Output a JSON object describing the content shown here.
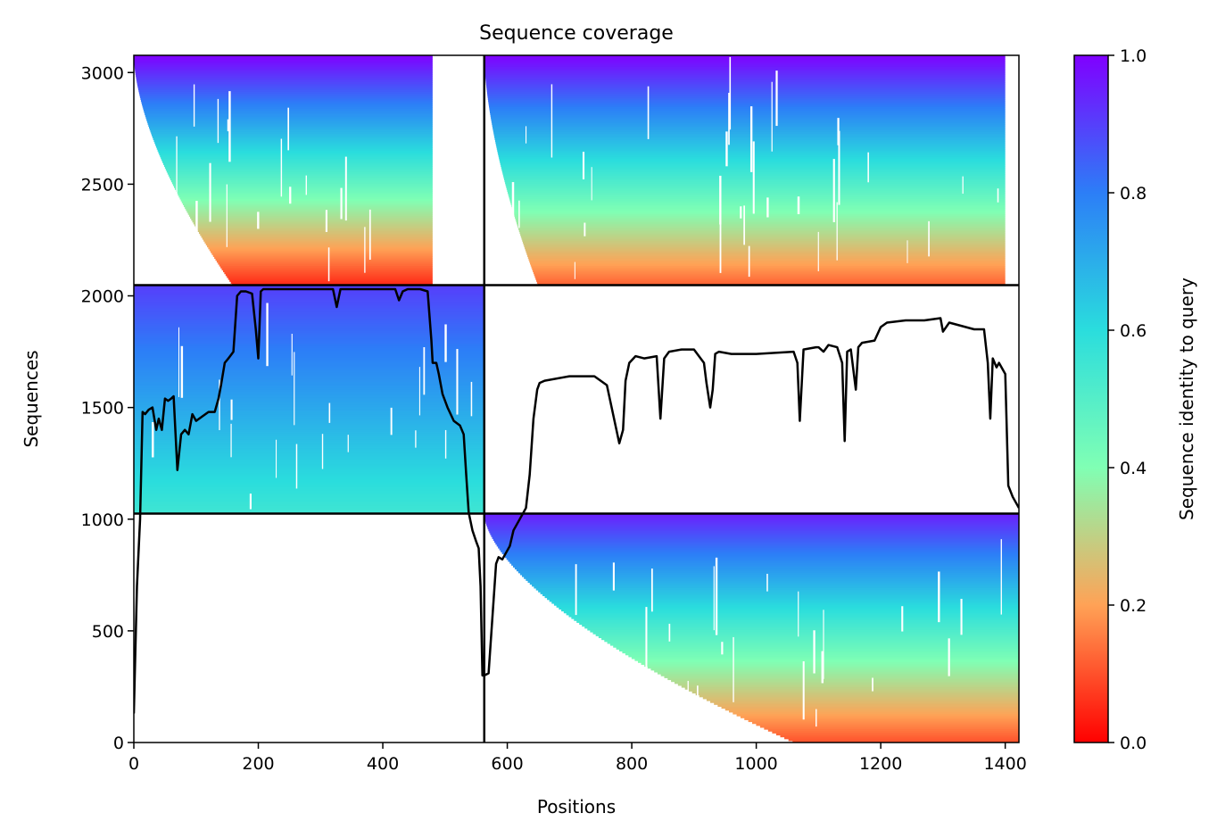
{
  "chart_data": {
    "type": "heatmap",
    "title": "Sequence coverage",
    "xlabel": "Positions",
    "ylabel": "Sequences",
    "xlim": [
      0,
      1422
    ],
    "ylim": [
      0,
      3077
    ],
    "xticks": [
      0,
      200,
      400,
      600,
      800,
      1000,
      1200,
      1400
    ],
    "yticks": [
      0,
      500,
      1000,
      1500,
      2000,
      2500,
      3000
    ],
    "colorbar": {
      "label": "Sequence identity to query",
      "range": [
        0,
        1
      ],
      "ticks": [
        "0.0",
        "0.2",
        "0.4",
        "0.6",
        "0.8",
        "1.0"
      ],
      "colormap": "rainbow_r"
    },
    "chain_boundaries_x": [
      563
    ],
    "block_boundaries_y": [
      1025,
      2048
    ],
    "blocks": [
      {
        "name": "top-left",
        "x": [
          0,
          563
        ],
        "y": [
          2048,
          3077
        ],
        "identity_top": 1.0,
        "identity_bottom": 0.05,
        "coverage_start_top": 0,
        "coverage_start_bottom": 160,
        "coverage_end": 480
      },
      {
        "name": "top-right",
        "x": [
          563,
          1422
        ],
        "y": [
          2048,
          3077
        ],
        "identity_top": 1.0,
        "identity_bottom": 0.12,
        "coverage_start_top": 563,
        "coverage_start_bottom": 650,
        "coverage_end": 1400
      },
      {
        "name": "middle-left",
        "x": [
          0,
          563
        ],
        "y": [
          1025,
          2048
        ],
        "identity_top": 0.9,
        "identity_bottom": 0.55,
        "coverage_start_top": 0,
        "coverage_start_bottom": 0,
        "coverage_end": 563
      },
      {
        "name": "bottom-right",
        "x": [
          563,
          1422
        ],
        "y": [
          0,
          1025
        ],
        "identity_top": 0.95,
        "identity_bottom": 0.1,
        "coverage_start_top": 563,
        "coverage_start_bottom": 1065,
        "coverage_end": 1422
      }
    ],
    "coverage_line": {
      "x": [
        0,
        5,
        10,
        14,
        18,
        24,
        30,
        36,
        40,
        45,
        50,
        55,
        60,
        64,
        70,
        76,
        82,
        88,
        94,
        100,
        110,
        120,
        130,
        136,
        140,
        146,
        152,
        160,
        166,
        172,
        180,
        190,
        196,
        200,
        204,
        208,
        214,
        230,
        260,
        300,
        320,
        326,
        332,
        340,
        400,
        420,
        426,
        432,
        440,
        460,
        472,
        478,
        480,
        486,
        490,
        496,
        504,
        514,
        524,
        530,
        534,
        538,
        544,
        550,
        554,
        557,
        560,
        563,
        570,
        582,
        586,
        592,
        598,
        604,
        610,
        620,
        630,
        636,
        642,
        648,
        652,
        660,
        700,
        740,
        760,
        780,
        786,
        790,
        796,
        806,
        820,
        840,
        846,
        852,
        860,
        880,
        900,
        916,
        920,
        926,
        930,
        934,
        940,
        960,
        1000,
        1060,
        1066,
        1070,
        1076,
        1096,
        1100,
        1108,
        1116,
        1130,
        1138,
        1142,
        1146,
        1152,
        1160,
        1164,
        1170,
        1190,
        1200,
        1210,
        1240,
        1270,
        1296,
        1300,
        1310,
        1350,
        1366,
        1372,
        1376,
        1380,
        1386,
        1390,
        1400,
        1405,
        1412,
        1418,
        1422
      ],
      "y": [
        130,
        700,
        1000,
        1480,
        1470,
        1490,
        1500,
        1400,
        1450,
        1400,
        1540,
        1530,
        1540,
        1550,
        1220,
        1380,
        1400,
        1380,
        1470,
        1440,
        1460,
        1480,
        1480,
        1540,
        1600,
        1700,
        1720,
        1750,
        2000,
        2020,
        2020,
        2010,
        1850,
        1720,
        2020,
        2030,
        2030,
        2030,
        2030,
        2030,
        2030,
        1950,
        2030,
        2030,
        2030,
        2030,
        1980,
        2020,
        2030,
        2030,
        2020,
        1800,
        1700,
        1700,
        1650,
        1560,
        1500,
        1440,
        1420,
        1380,
        1200,
        1030,
        950,
        900,
        870,
        700,
        300,
        300,
        310,
        800,
        830,
        820,
        850,
        880,
        950,
        1000,
        1050,
        1200,
        1450,
        1580,
        1610,
        1620,
        1640,
        1640,
        1600,
        1340,
        1400,
        1620,
        1700,
        1730,
        1720,
        1730,
        1450,
        1720,
        1750,
        1760,
        1760,
        1700,
        1610,
        1500,
        1580,
        1740,
        1750,
        1740,
        1740,
        1750,
        1700,
        1440,
        1760,
        1770,
        1770,
        1750,
        1780,
        1770,
        1700,
        1350,
        1750,
        1760,
        1580,
        1770,
        1790,
        1800,
        1860,
        1880,
        1890,
        1890,
        1900,
        1840,
        1880,
        1850,
        1850,
        1700,
        1450,
        1720,
        1680,
        1700,
        1650,
        1150,
        1100,
        1070,
        1050
      ]
    }
  }
}
